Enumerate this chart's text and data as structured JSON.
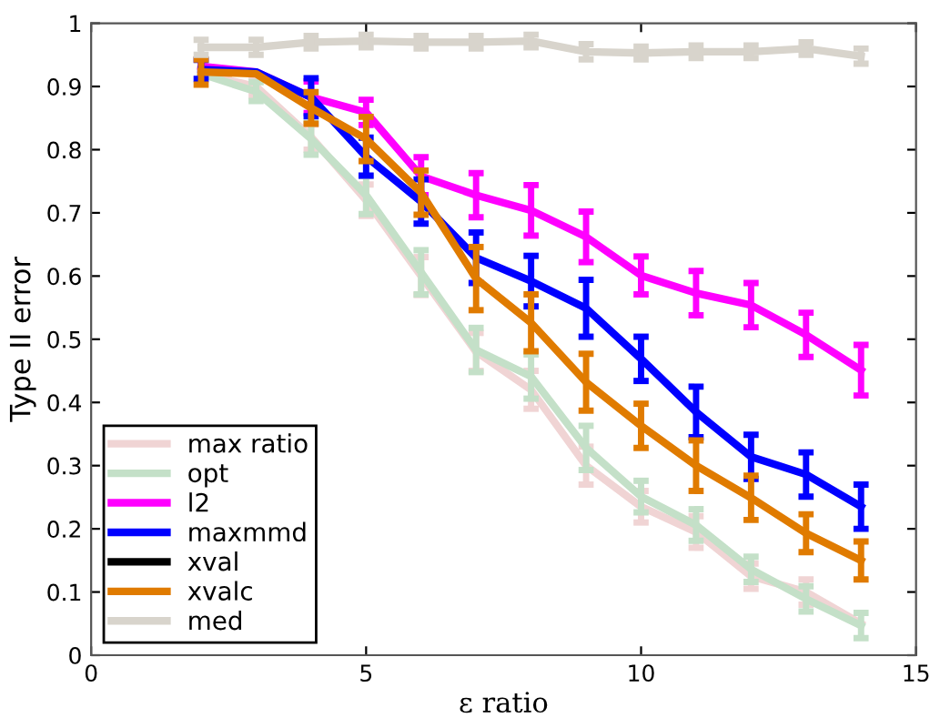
{
  "chart_data": {
    "type": "line",
    "xlabel": "ε ratio",
    "ylabel": "Type II error",
    "x": [
      2,
      3,
      4,
      5,
      6,
      7,
      8,
      9,
      10,
      11,
      12,
      13,
      14
    ],
    "xlim": [
      0,
      15
    ],
    "xticks": [
      0,
      5,
      10,
      15
    ],
    "ylim": [
      0,
      1
    ],
    "yticks": [
      0,
      0.1,
      0.2,
      0.3,
      0.4,
      0.5,
      0.6,
      0.7,
      0.8,
      0.9,
      1
    ],
    "grid": false,
    "legend": "bottom left",
    "marker": "none",
    "line_style": "solid",
    "series": [
      {
        "name": "max ratio",
        "color": "#f0d4d4",
        "values": [
          0.92,
          0.9,
          0.82,
          0.72,
          0.6,
          0.48,
          0.42,
          0.3,
          0.235,
          0.195,
          0.125,
          0.1,
          0.05
        ],
        "errors": [
          null,
          0.015,
          0.02,
          0.025,
          0.03,
          0.03,
          0.03,
          0.03,
          0.025,
          0.025,
          0.02,
          0.02,
          null
        ]
      },
      {
        "name": "opt",
        "color": "#c4e0c8",
        "values": [
          0.92,
          0.892,
          0.817,
          0.728,
          0.606,
          0.483,
          0.441,
          0.328,
          0.251,
          0.206,
          0.136,
          0.089,
          0.047
        ],
        "errors": [
          null,
          0.015,
          0.025,
          0.03,
          0.035,
          0.035,
          0.035,
          0.035,
          0.025,
          0.025,
          0.02,
          0.02,
          0.02
        ]
      },
      {
        "name": "l2",
        "color": "#ff00ff",
        "values": [
          0.932,
          0.923,
          0.883,
          0.859,
          0.758,
          0.728,
          0.704,
          0.662,
          0.601,
          0.573,
          0.554,
          0.507,
          0.451
        ],
        "errors": [
          null,
          null,
          0.025,
          0.02,
          0.03,
          0.035,
          0.04,
          0.04,
          0.03,
          0.035,
          0.035,
          0.035,
          0.04
        ]
      },
      {
        "name": "maxmmd",
        "color": "#0000ff",
        "values": [
          0.927,
          0.923,
          0.883,
          0.789,
          0.718,
          0.629,
          0.592,
          0.549,
          0.469,
          0.385,
          0.314,
          0.286,
          0.235
        ],
        "errors": [
          0.015,
          null,
          0.03,
          0.03,
          0.035,
          0.04,
          0.04,
          0.045,
          0.035,
          0.04,
          0.035,
          0.035,
          0.035
        ]
      },
      {
        "name": "xval",
        "color": "#000000",
        "values": [
          null,
          null,
          null,
          null,
          null,
          null,
          null,
          null,
          null,
          null,
          null,
          null,
          null
        ]
      },
      {
        "name": "xvalc",
        "color": "#e07b00",
        "values": [
          0.923,
          0.92,
          0.866,
          0.817,
          0.732,
          0.596,
          0.526,
          0.432,
          0.363,
          0.3,
          0.249,
          0.193,
          0.15
        ],
        "errors": [
          0.02,
          null,
          0.025,
          0.035,
          0.035,
          0.05,
          0.045,
          0.045,
          0.035,
          0.04,
          0.035,
          0.03,
          0.03
        ]
      },
      {
        "name": "med",
        "color": "#d8d4cc",
        "values": [
          0.962,
          0.962,
          0.97,
          0.972,
          0.97,
          0.97,
          0.972,
          0.955,
          0.953,
          0.955,
          0.955,
          0.96,
          0.948
        ],
        "errors": [
          0.012,
          0.012,
          0.01,
          0.01,
          0.01,
          0.01,
          0.01,
          0.012,
          0.01,
          0.01,
          0.01,
          0.01,
          0.012
        ]
      }
    ]
  }
}
